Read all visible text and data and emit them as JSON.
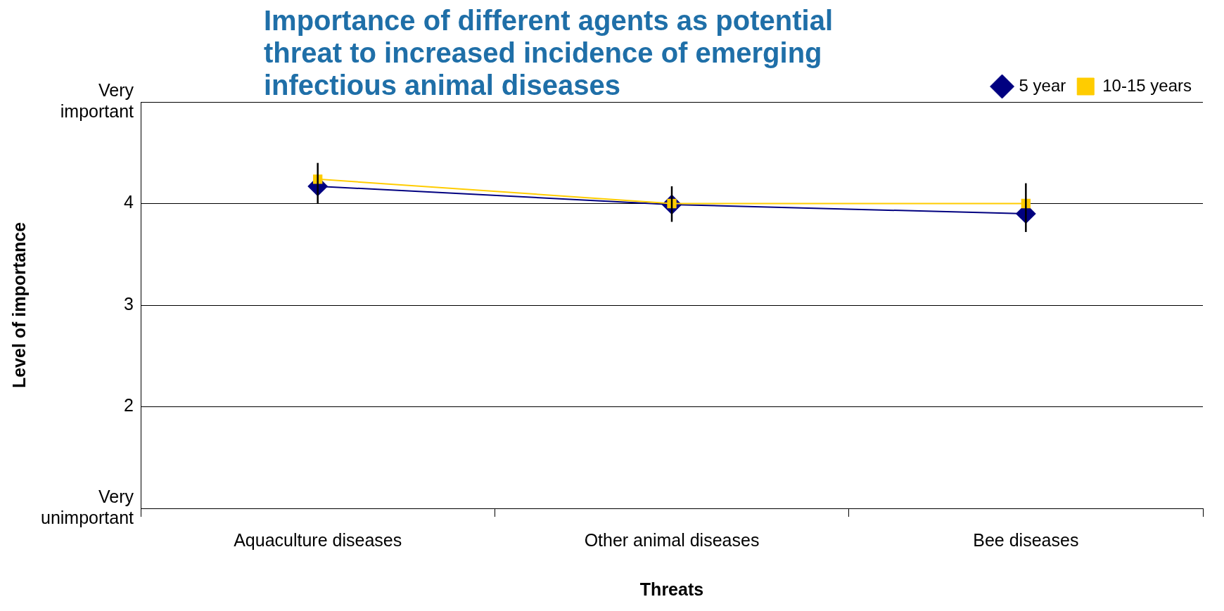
{
  "chart_data": {
    "type": "line",
    "title": "Importance of different agents as potential threat to increased incidence of emerging infectious animal diseases",
    "xlabel": "Threats",
    "ylabel": "Level of importance",
    "categories": [
      "Aquaculture diseases",
      "Other animal diseases",
      "Bee diseases"
    ],
    "series": [
      {
        "name": "5 year",
        "color": "#000080",
        "marker": "diamond",
        "values": [
          4.17,
          3.99,
          3.9
        ],
        "errors": [
          [
            4.0,
            4.4
          ],
          [
            3.82,
            4.17
          ],
          [
            3.72,
            4.2
          ]
        ]
      },
      {
        "name": "10-15 years",
        "color": "#ffcc00",
        "marker": "square",
        "values": [
          4.24,
          4.0,
          4.0
        ]
      }
    ],
    "ylim": [
      1,
      5
    ],
    "yticks": [
      {
        "value": 1,
        "label": "Very unimportant"
      },
      2,
      3,
      4,
      {
        "value": 5,
        "label": "Very important"
      }
    ],
    "grid": "y",
    "legend": "top right",
    "line_style": "solid"
  }
}
